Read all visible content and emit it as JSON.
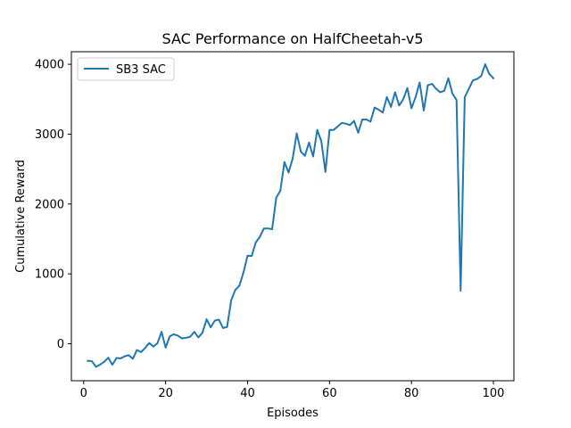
{
  "chart_data": {
    "type": "line",
    "title": "SAC Performance on HalfCheetah-v5",
    "xlabel": "Episodes",
    "ylabel": "Cumulative Reward",
    "xlim": [
      -3,
      105
    ],
    "ylim": [
      -530,
      4180
    ],
    "xticks": [
      0,
      20,
      40,
      60,
      80,
      100
    ],
    "yticks": [
      0,
      1000,
      2000,
      3000,
      4000
    ],
    "grid": false,
    "legend_position": "upper-left",
    "series": [
      {
        "name": "SB3 SAC",
        "color": "#1f77b4",
        "x": [
          1,
          2,
          3,
          4,
          5,
          6,
          7,
          8,
          9,
          10,
          11,
          12,
          13,
          14,
          15,
          16,
          17,
          18,
          19,
          20,
          21,
          22,
          23,
          24,
          25,
          26,
          27,
          28,
          29,
          30,
          31,
          32,
          33,
          34,
          35,
          36,
          37,
          38,
          39,
          40,
          41,
          42,
          43,
          44,
          45,
          46,
          47,
          48,
          49,
          50,
          51,
          52,
          53,
          54,
          55,
          56,
          57,
          58,
          59,
          60,
          61,
          62,
          63,
          64,
          65,
          66,
          67,
          68,
          69,
          70,
          71,
          72,
          73,
          74,
          75,
          76,
          77,
          78,
          79,
          80,
          81,
          82,
          83,
          84,
          85,
          86,
          87,
          88,
          89,
          90,
          91,
          92,
          93,
          94,
          95,
          96,
          97,
          98,
          99,
          100
        ],
        "y": [
          -245,
          -250,
          -330,
          -300,
          -260,
          -200,
          -300,
          -205,
          -210,
          -180,
          -165,
          -215,
          -90,
          -120,
          -60,
          10,
          -40,
          5,
          170,
          -55,
          105,
          135,
          115,
          75,
          85,
          100,
          170,
          90,
          160,
          350,
          235,
          330,
          345,
          225,
          240,
          620,
          770,
          830,
          1020,
          1260,
          1255,
          1450,
          1530,
          1650,
          1650,
          1640,
          2090,
          2190,
          2600,
          2450,
          2650,
          3010,
          2750,
          2690,
          2880,
          2680,
          3060,
          2900,
          2460,
          3060,
          3060,
          3110,
          3160,
          3150,
          3130,
          3190,
          3020,
          3210,
          3210,
          3180,
          3380,
          3350,
          3310,
          3530,
          3390,
          3600,
          3410,
          3500,
          3660,
          3370,
          3530,
          3740,
          3340,
          3700,
          3720,
          3650,
          3600,
          3620,
          3800,
          3580,
          3490,
          760,
          3530,
          3650,
          3770,
          3790,
          3830,
          4000,
          3860,
          3800
        ]
      }
    ]
  }
}
